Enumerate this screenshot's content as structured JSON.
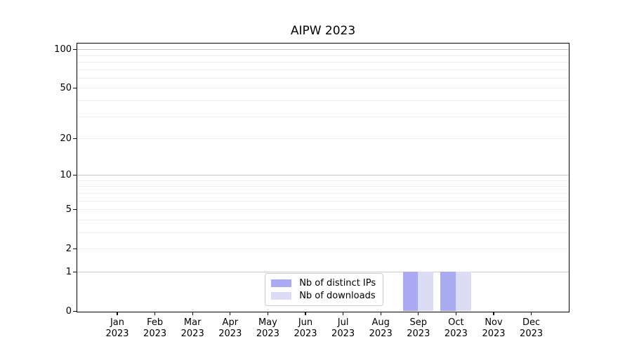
{
  "title": "AIPW 2023",
  "legend": {
    "items": [
      {
        "label": "Nb of distinct IPs",
        "color": "#aaaaf2"
      },
      {
        "label": "Nb of downloads",
        "color": "#dcdcf5"
      }
    ]
  },
  "chart_data": {
    "type": "bar",
    "title": "AIPW 2023",
    "categories": [
      "Jan",
      "Feb",
      "Mar",
      "Apr",
      "May",
      "Jun",
      "Jul",
      "Aug",
      "Sep",
      "Oct",
      "Nov",
      "Dec"
    ],
    "year_label": "2023",
    "series": [
      {
        "name": "Nb of distinct IPs",
        "color": "#aaaaf2",
        "values": [
          0,
          0,
          0,
          0,
          0,
          0,
          0,
          0,
          1,
          1,
          0,
          0
        ]
      },
      {
        "name": "Nb of downloads",
        "color": "#dcdcf5",
        "values": [
          0,
          0,
          0,
          0,
          0,
          0,
          0,
          0,
          1,
          1,
          0,
          0
        ]
      }
    ],
    "y_axis": {
      "scale": "log10(1+v)",
      "tick_labels": [
        0,
        1,
        2,
        5,
        10,
        20,
        50,
        100
      ],
      "gridlines_major": [
        1,
        10,
        100
      ],
      "gridlines_minor": [
        2,
        3,
        4,
        5,
        6,
        7,
        8,
        9,
        20,
        30,
        40,
        50,
        60,
        70,
        80,
        90
      ],
      "range": [
        0,
        112
      ]
    },
    "grid": true,
    "legend_position": "inside bottom-center"
  },
  "colors": {
    "grid_major": "#c9c9c9",
    "grid_minor": "#ededed",
    "spine": "#000000",
    "legend_border": "#cccccc"
  }
}
